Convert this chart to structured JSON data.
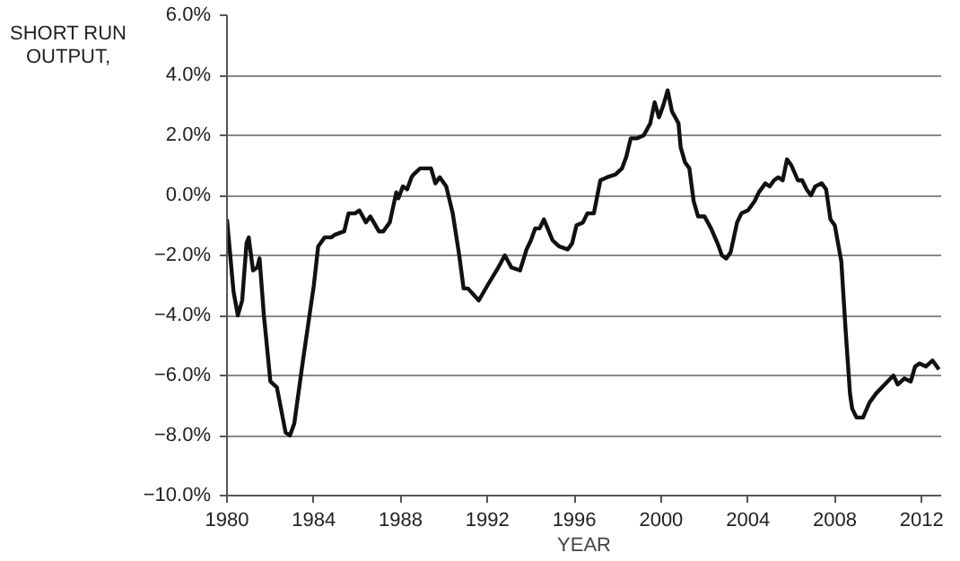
{
  "chart_data": {
    "type": "line",
    "xlabel": "YEAR",
    "ylabel": "SHORT RUN\nOUTPUT,",
    "x": [
      1980.0,
      1980.3,
      1980.5,
      1980.7,
      1980.9,
      1981.0,
      1981.2,
      1981.4,
      1981.5,
      1981.7,
      1982.0,
      1982.3,
      1982.7,
      1982.9,
      1983.1,
      1983.5,
      1984.0,
      1984.2,
      1984.5,
      1984.8,
      1985.0,
      1985.4,
      1985.6,
      1985.9,
      1986.1,
      1986.4,
      1986.6,
      1987.0,
      1987.2,
      1987.5,
      1987.8,
      1987.9,
      1988.1,
      1988.3,
      1988.5,
      1988.6,
      1988.9,
      1989.2,
      1989.4,
      1989.6,
      1989.8,
      1990.1,
      1990.4,
      1990.7,
      1990.9,
      1991.1,
      1991.6,
      1992.0,
      1992.5,
      1992.8,
      1993.1,
      1993.5,
      1993.8,
      1994.0,
      1994.2,
      1994.4,
      1994.6,
      1995.0,
      1995.3,
      1995.7,
      1995.9,
      1996.1,
      1996.4,
      1996.6,
      1996.9,
      1997.2,
      1997.5,
      1997.9,
      1998.2,
      1998.4,
      1998.6,
      1998.9,
      1999.2,
      1999.5,
      1999.7,
      1999.9,
      2000.1,
      2000.3,
      2000.5,
      2000.8,
      2000.9,
      2001.1,
      2001.3,
      2001.5,
      2001.7,
      2002.0,
      2002.3,
      2002.6,
      2002.8,
      2003.0,
      2003.2,
      2003.5,
      2003.7,
      2004.0,
      2004.3,
      2004.5,
      2004.8,
      2005.0,
      2005.2,
      2005.4,
      2005.6,
      2005.8,
      2006.0,
      2006.3,
      2006.5,
      2006.7,
      2006.9,
      2007.1,
      2007.4,
      2007.6,
      2007.8,
      2008.0,
      2008.3,
      2008.5,
      2008.7,
      2008.8,
      2009.0,
      2009.3,
      2009.6,
      2009.9,
      2010.3,
      2010.7,
      2010.9,
      2011.2,
      2011.5,
      2011.7,
      2011.9,
      2012.2,
      2012.5,
      2012.8
    ],
    "series": [
      {
        "color": "#111111",
        "values": [
          -0.8,
          -3.2,
          -4.0,
          -3.5,
          -1.6,
          -1.4,
          -2.5,
          -2.4,
          -2.1,
          -4.0,
          -6.2,
          -6.4,
          -7.9,
          -8.0,
          -7.6,
          -5.5,
          -3.0,
          -1.7,
          -1.4,
          -1.4,
          -1.3,
          -1.2,
          -0.6,
          -0.6,
          -0.5,
          -0.9,
          -0.7,
          -1.2,
          -1.2,
          -0.9,
          0.1,
          -0.1,
          0.3,
          0.2,
          0.6,
          0.7,
          0.9,
          0.9,
          0.9,
          0.4,
          0.6,
          0.3,
          -0.6,
          -2.0,
          -3.1,
          -3.1,
          -3.5,
          -3.0,
          -2.4,
          -2.0,
          -2.4,
          -2.5,
          -1.8,
          -1.5,
          -1.1,
          -1.1,
          -0.8,
          -1.5,
          -1.7,
          -1.8,
          -1.6,
          -1.0,
          -0.9,
          -0.6,
          -0.6,
          0.5,
          0.6,
          0.7,
          0.9,
          1.3,
          1.9,
          1.9,
          2.0,
          2.4,
          3.1,
          2.6,
          3.0,
          3.5,
          2.8,
          2.4,
          1.6,
          1.1,
          0.9,
          -0.2,
          -0.7,
          -0.7,
          -1.1,
          -1.6,
          -2.0,
          -2.1,
          -1.9,
          -0.9,
          -0.6,
          -0.5,
          -0.2,
          0.1,
          0.4,
          0.3,
          0.5,
          0.6,
          0.5,
          1.2,
          1.0,
          0.5,
          0.5,
          0.2,
          0.0,
          0.3,
          0.4,
          0.2,
          -0.8,
          -1.0,
          -2.2,
          -4.5,
          -6.6,
          -7.1,
          -7.4,
          -7.4,
          -6.9,
          -6.6,
          -6.3,
          -6.0,
          -6.3,
          -6.1,
          -6.2,
          -5.7,
          -5.6,
          -5.7,
          -5.5,
          -5.8
        ]
      }
    ],
    "xlim": [
      1980,
      2012.9
    ],
    "ylim": [
      -10,
      6
    ],
    "xticks": [
      1980,
      1984,
      1988,
      1992,
      1996,
      2000,
      2004,
      2008,
      2012
    ],
    "yticks": [
      {
        "value": -10,
        "label": "−10.0%"
      },
      {
        "value": -8,
        "label": "−8.0%"
      },
      {
        "value": -6,
        "label": "−6.0%"
      },
      {
        "value": -4,
        "label": "−4.0%"
      },
      {
        "value": -2,
        "label": "−2.0%"
      },
      {
        "value": 0,
        "label": "0.0%"
      },
      {
        "value": 2,
        "label": "2.0%"
      },
      {
        "value": 4,
        "label": "4.0%"
      },
      {
        "value": 6,
        "label": "6.0%"
      }
    ],
    "grid": "y",
    "line_style": "solid",
    "marker": "none"
  }
}
